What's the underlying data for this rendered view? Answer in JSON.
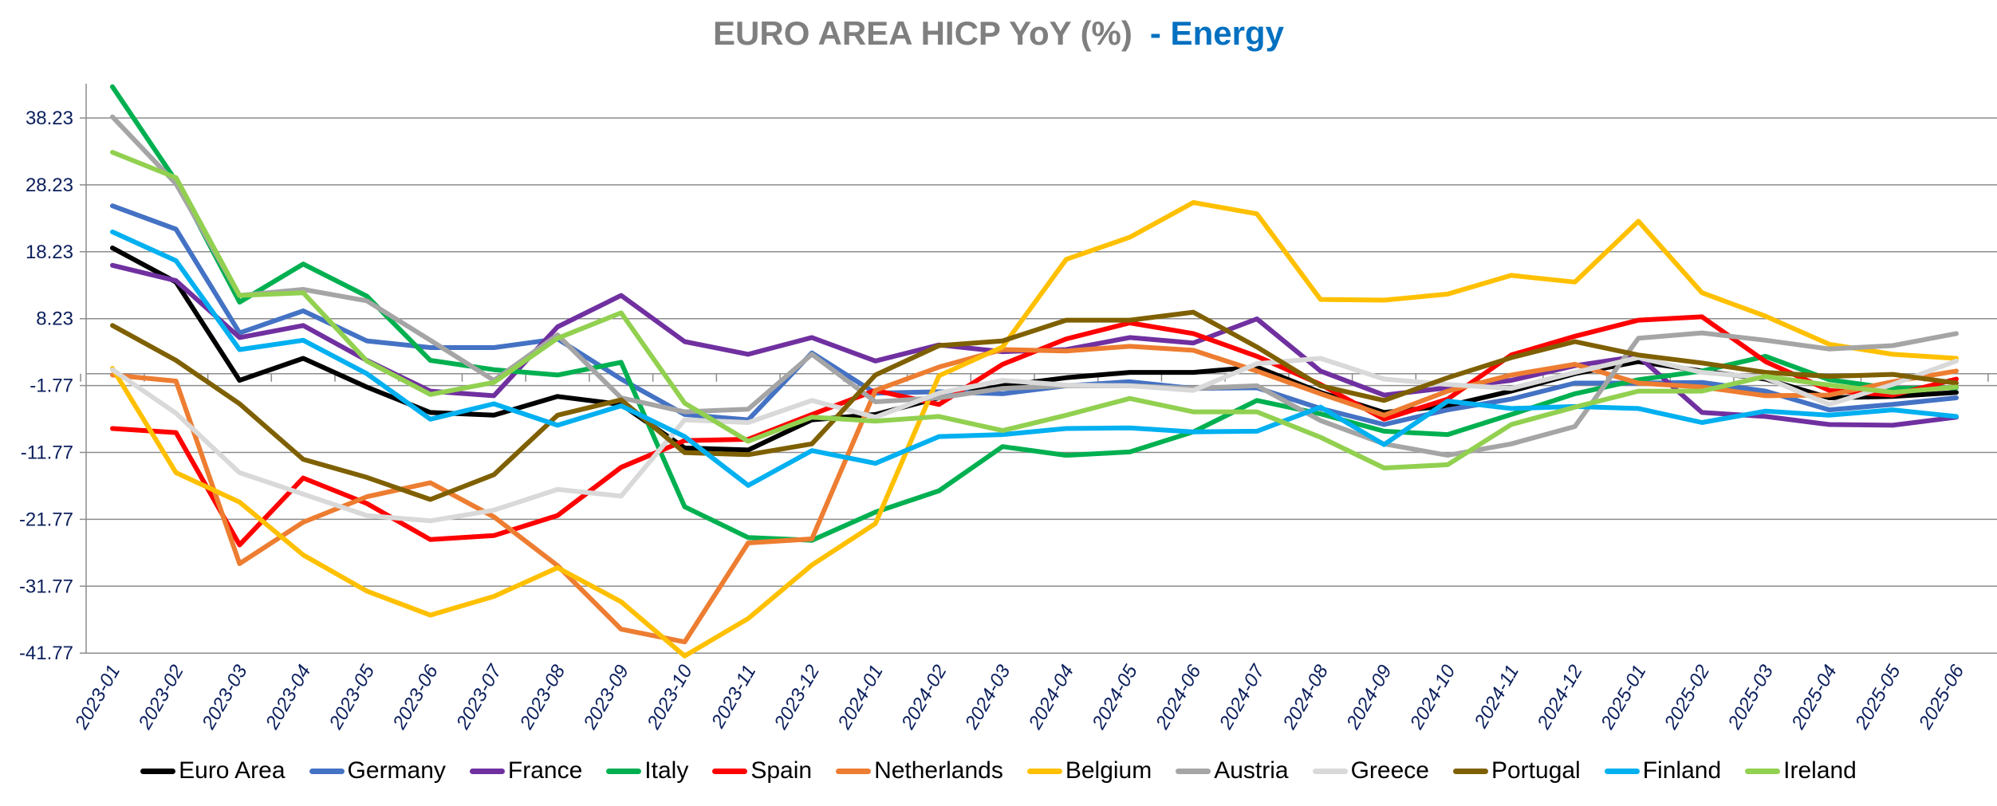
{
  "chart_data": {
    "type": "line",
    "title": "EURO AREA HICP YoY (%)",
    "title_suffix": "- Energy",
    "title_color": "#7f7f7f",
    "title_suffix_color": "#0070c0",
    "xlabel": "",
    "ylabel": "",
    "ylim": [
      -41.77,
      43.5
    ],
    "yticks": [
      38.23,
      28.23,
      18.23,
      8.23,
      -1.77,
      -11.77,
      -21.77,
      -31.77,
      -41.77
    ],
    "ytick_labels": [
      "38.23",
      "28.23",
      "18.23",
      "8.23",
      "-1.77",
      "-11.77",
      "-21.77",
      "-31.77",
      "-41.77"
    ],
    "x_axis_crosses_at": 0,
    "grid": true,
    "legend_position": "bottom",
    "categories": [
      "2023-01",
      "2023-02",
      "2023-03",
      "2023-04",
      "2023-05",
      "2023-06",
      "2023-07",
      "2023-08",
      "2023-09",
      "2023-10",
      "2023-11",
      "2023-12",
      "2024-01",
      "2024-02",
      "2024-03",
      "2024-04",
      "2024-05",
      "2024-06",
      "2024-07",
      "2024-08",
      "2024-09",
      "2024-10",
      "2024-11",
      "2024-12",
      "2025-01",
      "2025-02",
      "2025-03",
      "2025-04",
      "2025-05",
      "2025-06"
    ],
    "series": [
      {
        "name": "Euro Area",
        "color": "#000000",
        "values": [
          18.8,
          13.7,
          -1.0,
          2.3,
          -2.0,
          -5.8,
          -6.2,
          -3.4,
          -4.6,
          -11.1,
          -11.4,
          -6.9,
          -6.1,
          -3.6,
          -1.8,
          -0.6,
          0.2,
          0.2,
          1.0,
          -2.8,
          -5.8,
          -4.8,
          -2.6,
          0.0,
          1.8,
          0.4,
          -0.8,
          -3.6,
          -3.4,
          -2.8
        ]
      },
      {
        "name": "Germany",
        "color": "#4472c4",
        "values": [
          25.1,
          21.6,
          6.1,
          9.4,
          4.9,
          3.9,
          3.9,
          5.2,
          -0.8,
          -6.1,
          -6.9,
          3.1,
          -2.9,
          -2.7,
          -3.0,
          -1.8,
          -1.2,
          -2.2,
          -2.1,
          -5.2,
          -7.6,
          -5.4,
          -3.8,
          -1.4,
          -1.4,
          -1.3,
          -2.6,
          -5.4,
          -4.6,
          -3.6
        ]
      },
      {
        "name": "France",
        "color": "#7030a0",
        "values": [
          16.2,
          13.9,
          5.4,
          7.2,
          2.0,
          -2.6,
          -3.3,
          7.0,
          11.7,
          4.8,
          2.9,
          5.4,
          1.9,
          4.3,
          3.3,
          3.6,
          5.4,
          4.6,
          8.2,
          0.4,
          -3.2,
          -2.1,
          -1.0,
          1.2,
          2.6,
          -5.8,
          -6.4,
          -7.6,
          -7.7,
          -6.5
        ]
      },
      {
        "name": "Italy",
        "color": "#00b050",
        "values": [
          42.9,
          28.8,
          10.7,
          16.4,
          11.6,
          2.0,
          0.6,
          -0.2,
          1.7,
          -19.9,
          -24.5,
          -24.9,
          -20.7,
          -17.5,
          -10.9,
          -12.2,
          -11.7,
          -8.7,
          -4.0,
          -6.0,
          -8.6,
          -9.1,
          -6.1,
          -3.0,
          -0.9,
          0.4,
          2.6,
          -0.9,
          -2.2,
          -2.1
        ]
      },
      {
        "name": "Spain",
        "color": "#ff0000",
        "values": [
          -8.2,
          -8.8,
          -25.6,
          -15.6,
          -19.4,
          -24.8,
          -24.2,
          -21.2,
          -14.0,
          -10.0,
          -9.8,
          -6.1,
          -2.5,
          -4.6,
          1.4,
          5.2,
          7.6,
          6.0,
          2.6,
          -1.6,
          -6.8,
          -3.8,
          2.8,
          5.6,
          8.0,
          8.5,
          1.8,
          -2.5,
          -3.2,
          -0.8
        ]
      },
      {
        "name": "Netherlands",
        "color": "#ed7d31",
        "values": [
          -0.2,
          -1.1,
          -28.4,
          -22.2,
          -18.4,
          -16.3,
          -21.4,
          -28.7,
          -38.2,
          -40.1,
          -25.3,
          -24.7,
          -2.5,
          1.0,
          3.6,
          3.4,
          4.1,
          3.5,
          0.4,
          -3.0,
          -6.2,
          -2.6,
          -0.2,
          1.4,
          -1.4,
          -2.0,
          -3.3,
          -3.2,
          -1.2,
          0.4
        ]
      },
      {
        "name": "Belgium",
        "color": "#ffc000",
        "values": [
          0.8,
          -14.8,
          -19.2,
          -27.1,
          -32.5,
          -36.1,
          -33.3,
          -29.0,
          -34.1,
          -42.2,
          -36.6,
          -28.6,
          -22.4,
          -0.3,
          4.0,
          17.1,
          20.4,
          25.6,
          23.9,
          11.1,
          11.0,
          11.9,
          14.7,
          13.7,
          22.8,
          12.1,
          8.6,
          4.4,
          2.9,
          2.3
        ]
      },
      {
        "name": "Austria",
        "color": "#a5a5a5",
        "values": [
          38.4,
          28.4,
          11.7,
          12.6,
          10.9,
          5.0,
          -1.0,
          5.8,
          -3.6,
          -5.7,
          -5.3,
          2.9,
          -4.2,
          -3.6,
          -2.2,
          -1.8,
          -1.8,
          -2.2,
          -1.8,
          -7.0,
          -10.5,
          -12.2,
          -10.5,
          -7.9,
          5.3,
          6.1,
          5.0,
          3.7,
          4.2,
          6.0
        ]
      },
      {
        "name": "Greece",
        "color": "#d9d9d9",
        "values": [
          0.6,
          -5.9,
          -14.8,
          -18.0,
          -21.2,
          -22.0,
          -20.4,
          -17.3,
          -18.3,
          -6.9,
          -7.3,
          -4.0,
          -6.5,
          -2.9,
          -1.0,
          -1.7,
          -1.8,
          -2.5,
          1.5,
          2.3,
          -0.8,
          -1.6,
          -2.2,
          0.2,
          2.4,
          0.2,
          -0.6,
          -4.6,
          -1.6,
          1.9
        ]
      },
      {
        "name": "Portugal",
        "color": "#7f6000",
        "values": [
          7.2,
          2.0,
          -4.5,
          -12.8,
          -15.5,
          -18.8,
          -15.1,
          -6.2,
          -3.9,
          -11.8,
          -12.1,
          -10.5,
          -0.2,
          4.2,
          4.9,
          8.0,
          8.0,
          9.2,
          4.0,
          -1.8,
          -4.0,
          -0.6,
          2.4,
          4.8,
          2.8,
          1.6,
          0.2,
          -0.4,
          -0.1,
          -1.4
        ]
      },
      {
        "name": "Finland",
        "color": "#00b0f0",
        "values": [
          21.2,
          16.9,
          3.6,
          5.0,
          0.0,
          -6.8,
          -4.5,
          -7.7,
          -4.8,
          -9.4,
          -16.7,
          -11.5,
          -13.4,
          -9.4,
          -9.1,
          -8.2,
          -8.1,
          -8.7,
          -8.6,
          -5.0,
          -10.6,
          -4.1,
          -5.2,
          -4.9,
          -5.2,
          -7.3,
          -5.6,
          -6.2,
          -5.4,
          -6.4
        ]
      },
      {
        "name": "Ireland",
        "color": "#92d050",
        "values": [
          33.1,
          29.3,
          11.7,
          12.1,
          1.9,
          -3.1,
          -1.3,
          5.3,
          9.1,
          -4.4,
          -10.1,
          -6.5,
          -7.1,
          -6.4,
          -8.5,
          -6.2,
          -3.7,
          -5.7,
          -5.7,
          -9.5,
          -14.1,
          -13.6,
          -7.6,
          -5.0,
          -2.6,
          -2.6,
          -0.4,
          -1.7,
          -2.8,
          -2.0
        ]
      }
    ]
  }
}
